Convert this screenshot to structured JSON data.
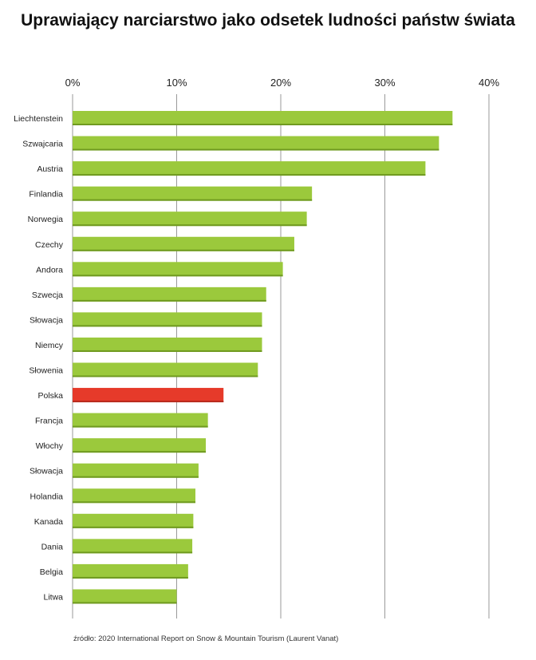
{
  "chart_data": {
    "type": "bar",
    "orientation": "horizontal",
    "title": "Uprawiający narciarstwo jako odsetek ludności państw świata",
    "categories": [
      "Liechtenstein",
      "Szwajcaria",
      "Austria",
      "Finlandia",
      "Norwegia",
      "Czechy",
      "Andora",
      "Szwecja",
      "Słowacja",
      "Niemcy",
      "Słowenia",
      "Polska",
      "Francja",
      "Włochy",
      "Słowacja",
      "Holandia",
      "Kanada",
      "Dania",
      "Belgia",
      "Litwa"
    ],
    "values": [
      36.5,
      35.2,
      33.9,
      23.0,
      22.5,
      21.3,
      20.2,
      18.6,
      18.2,
      18.2,
      17.8,
      14.5,
      13.0,
      12.8,
      12.1,
      11.8,
      11.6,
      11.5,
      11.1,
      10.0
    ],
    "highlight_category": "Polska",
    "xlim": [
      0,
      40
    ],
    "xticks": [
      0,
      10,
      20,
      30,
      40
    ],
    "xtick_labels": [
      "0%",
      "10%",
      "20%",
      "30%",
      "40%"
    ],
    "grid": true,
    "colors": {
      "bar": "#9bc93c",
      "bar_edge": "#6f9a20",
      "highlight": "#e63a2a",
      "highlight_edge": "#b82a1c",
      "grid": "#9a9a9a"
    },
    "source": "źródło: 2020 International Report on Snow & Mountain Tourism (Laurent Vanat)"
  }
}
